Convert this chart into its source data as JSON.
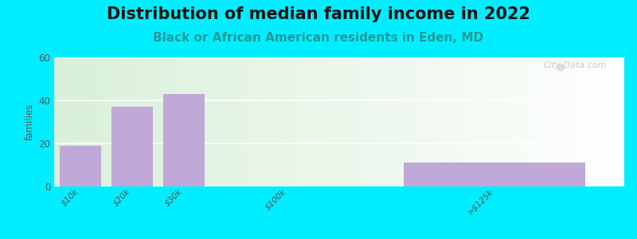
{
  "title": "Distribution of median family income in 2022",
  "subtitle": "Black or African American residents in Eden, MD",
  "categories": [
    "$10k",
    "$20k",
    "$30k",
    "$100k",
    ">$125k"
  ],
  "values": [
    19,
    37,
    43,
    0,
    11
  ],
  "bar_color": "#c0a8d8",
  "ylim": [
    0,
    60
  ],
  "yticks": [
    0,
    20,
    40,
    60
  ],
  "ylabel": "families",
  "background_outer": "#00eeff",
  "title_fontsize": 15,
  "subtitle_fontsize": 11,
  "watermark": "City-Data.com",
  "positions": [
    0,
    1,
    2,
    4,
    8
  ],
  "bar_widths": [
    0.8,
    0.8,
    0.8,
    0.8,
    3.5
  ],
  "xlim": [
    -0.5,
    10.5
  ]
}
